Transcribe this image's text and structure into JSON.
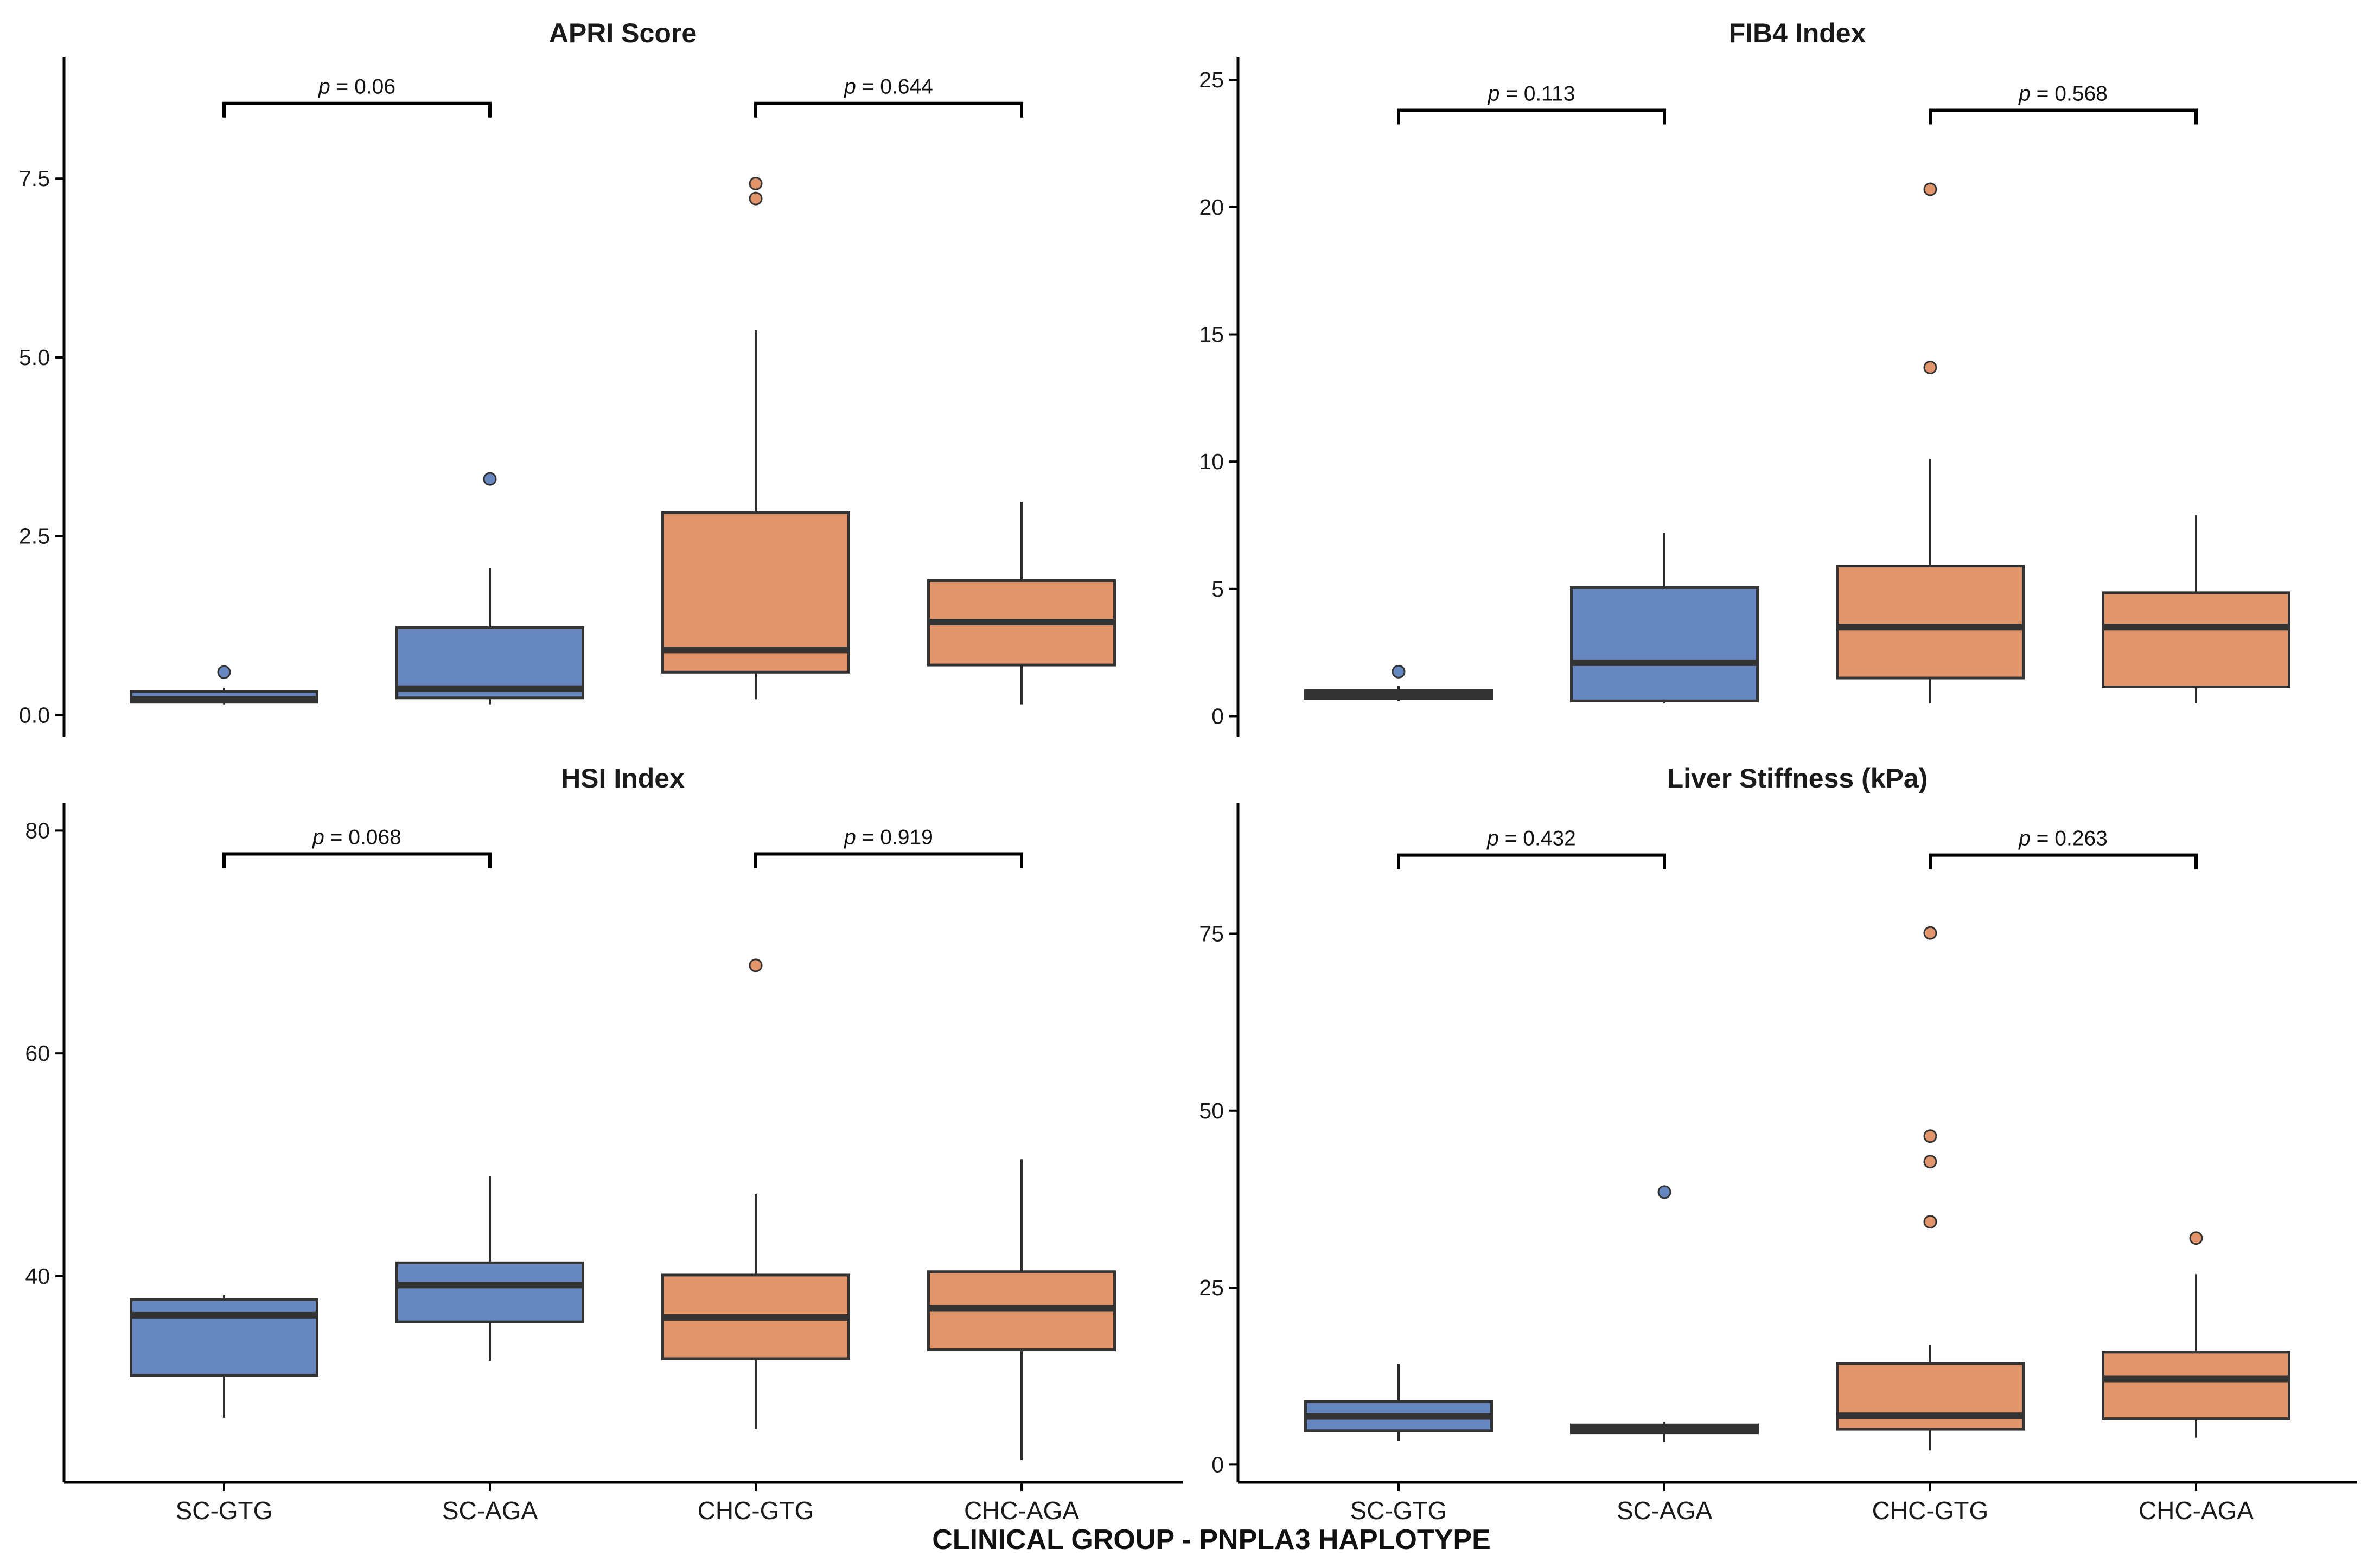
{
  "colors": {
    "SC": "#6787c0",
    "CHC": "#e2956b"
  },
  "xlabel": "CLINICAL GROUP - PNPLA3 HAPLOTYPE",
  "chart_data": [
    {
      "type": "box",
      "title": "APRI Score",
      "categories": [
        "SC-GTG",
        "SC-AGA",
        "CHC-GTG",
        "CHC-AGA"
      ],
      "group": [
        "SC",
        "SC",
        "CHC",
        "CHC"
      ],
      "ylim": [
        -0.3,
        9.2
      ],
      "yticks": [
        0,
        2.5,
        5,
        7.5
      ],
      "ytick_labels": [
        "0.0",
        "2.5",
        "5.0",
        "7.5"
      ],
      "boxes": [
        {
          "min": 0.15,
          "q1": 0.18,
          "median": 0.22,
          "q3": 0.33,
          "max": 0.38,
          "outliers": [
            0.6
          ]
        },
        {
          "min": 0.15,
          "q1": 0.24,
          "median": 0.37,
          "q3": 1.22,
          "max": 2.05,
          "outliers": [
            3.3
          ]
        },
        {
          "min": 0.22,
          "q1": 0.6,
          "median": 0.91,
          "q3": 2.83,
          "max": 5.38,
          "outliers": [
            7.22,
            7.43
          ]
        },
        {
          "min": 0.15,
          "q1": 0.7,
          "median": 1.3,
          "q3": 1.88,
          "max": 2.98,
          "outliers": []
        }
      ],
      "comparisons": [
        {
          "pair": [
            0,
            1
          ],
          "label": "p = 0.06",
          "y": 8.55
        },
        {
          "pair": [
            2,
            3
          ],
          "label": "p = 0.644",
          "y": 8.55
        }
      ]
    },
    {
      "type": "box",
      "title": "FIB4 Index",
      "categories": [
        "SC-GTG",
        "SC-AGA",
        "CHC-GTG",
        "CHC-AGA"
      ],
      "group": [
        "SC",
        "SC",
        "CHC",
        "CHC"
      ],
      "ylim": [
        -0.8,
        25.9
      ],
      "yticks": [
        0,
        5,
        10,
        15,
        20,
        25
      ],
      "ytick_labels": [
        "0",
        "5",
        "10",
        "15",
        "20",
        "25"
      ],
      "boxes": [
        {
          "min": 0.6,
          "q1": 0.7,
          "median": 0.85,
          "q3": 1.0,
          "max": 1.2,
          "outliers": [
            1.75
          ]
        },
        {
          "min": 0.5,
          "q1": 0.6,
          "median": 2.1,
          "q3": 5.05,
          "max": 7.2,
          "outliers": []
        },
        {
          "min": 0.5,
          "q1": 1.5,
          "median": 3.5,
          "q3": 5.9,
          "max": 10.1,
          "outliers": [
            13.7,
            20.7
          ]
        },
        {
          "min": 0.5,
          "q1": 1.15,
          "median": 3.5,
          "q3": 4.85,
          "max": 7.9,
          "outliers": []
        }
      ],
      "comparisons": [
        {
          "pair": [
            0,
            1
          ],
          "label": "p = 0.113",
          "y": 23.8
        },
        {
          "pair": [
            2,
            3
          ],
          "label": "p = 0.568",
          "y": 23.8
        }
      ]
    },
    {
      "type": "box",
      "title": "HSI Index",
      "categories": [
        "SC-GTG",
        "SC-AGA",
        "CHC-GTG",
        "CHC-AGA"
      ],
      "group": [
        "SC",
        "SC",
        "CHC",
        "CHC"
      ],
      "ylim": [
        21.5,
        82.5
      ],
      "yticks": [
        40,
        60,
        80
      ],
      "ytick_labels": [
        "40",
        "60",
        "80"
      ],
      "boxes": [
        {
          "min": 27.3,
          "q1": 31.1,
          "median": 36.5,
          "q3": 37.9,
          "max": 38.3,
          "outliers": []
        },
        {
          "min": 32.4,
          "q1": 35.9,
          "median": 39.2,
          "q3": 41.2,
          "max": 49.0,
          "outliers": []
        },
        {
          "min": 26.3,
          "q1": 32.6,
          "median": 36.3,
          "q3": 40.1,
          "max": 47.4,
          "outliers": [
            67.9
          ]
        },
        {
          "min": 23.5,
          "q1": 33.4,
          "median": 37.1,
          "q3": 40.4,
          "max": 50.5,
          "outliers": []
        }
      ],
      "comparisons": [
        {
          "pair": [
            0,
            1
          ],
          "label": "p = 0.068",
          "y": 77.9
        },
        {
          "pair": [
            2,
            3
          ],
          "label": "p = 0.919",
          "y": 77.9
        }
      ]
    },
    {
      "type": "box",
      "title": "Liver Stiffness (kPa)",
      "categories": [
        "SC-GTG",
        "SC-AGA",
        "CHC-GTG",
        "CHC-AGA"
      ],
      "group": [
        "SC",
        "SC",
        "CHC",
        "CHC"
      ],
      "ylim": [
        -2.5,
        93.5
      ],
      "yticks": [
        0,
        25,
        50,
        75
      ],
      "ytick_labels": [
        "0",
        "25",
        "50",
        "75"
      ],
      "boxes": [
        {
          "min": 3.4,
          "q1": 4.8,
          "median": 6.8,
          "q3": 8.9,
          "max": 14.2,
          "outliers": []
        },
        {
          "min": 3.2,
          "q1": 4.5,
          "median": 5.0,
          "q3": 5.6,
          "max": 6.0,
          "outliers": [
            38.5
          ]
        },
        {
          "min": 2.0,
          "q1": 5.0,
          "median": 6.9,
          "q3": 14.3,
          "max": 16.9,
          "outliers": [
            34.3,
            42.8,
            46.4,
            75.1
          ]
        },
        {
          "min": 3.8,
          "q1": 6.5,
          "median": 12.1,
          "q3": 15.9,
          "max": 26.9,
          "outliers": [
            32.0
          ]
        }
      ],
      "comparisons": [
        {
          "pair": [
            0,
            1
          ],
          "label": "p = 0.432",
          "y": 86.1
        },
        {
          "pair": [
            2,
            3
          ],
          "label": "p = 0.263",
          "y": 86.1
        }
      ]
    }
  ]
}
